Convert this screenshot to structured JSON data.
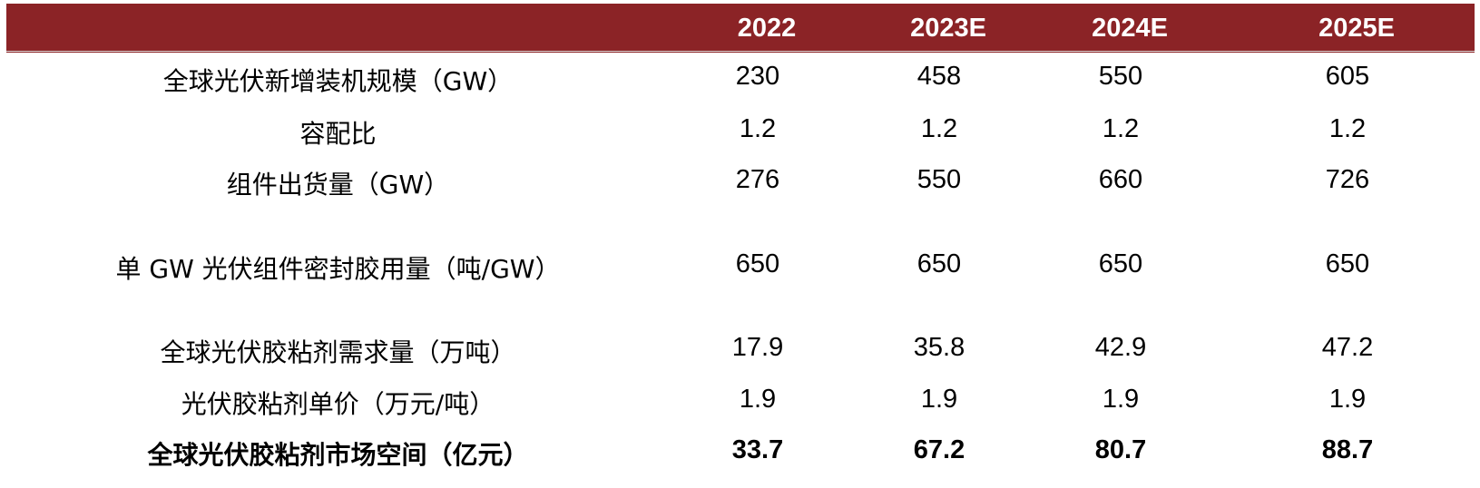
{
  "header": {
    "columns": [
      "",
      "2022",
      "2023E",
      "2024E",
      "2025E"
    ]
  },
  "rows": [
    {
      "label": "全球光伏新增装机规模（GW）",
      "values": [
        "230",
        "458",
        "550",
        "605"
      ]
    },
    {
      "label": "容配比",
      "values": [
        "1.2",
        "1.2",
        "1.2",
        "1.2"
      ]
    },
    {
      "label": "组件出货量（GW）",
      "values": [
        "276",
        "550",
        "660",
        "726"
      ]
    },
    {
      "label": "单 GW 光伏组件密封胶用量（吨/GW）",
      "values": [
        "650",
        "650",
        "650",
        "650"
      ]
    },
    {
      "label": "全球光伏胶粘剂需求量（万吨）",
      "values": [
        "17.9",
        "35.8",
        "42.9",
        "47.2"
      ]
    },
    {
      "label": "光伏胶粘剂单价（万元/吨）",
      "values": [
        "1.9",
        "1.9",
        "1.9",
        "1.9"
      ]
    },
    {
      "label": "全球光伏胶粘剂市场空间（亿元）",
      "values": [
        "33.7",
        "67.2",
        "80.7",
        "88.7"
      ]
    }
  ],
  "colors": {
    "header_background": "#8b2326",
    "header_text": "#ffffff",
    "body_text": "#000000"
  }
}
